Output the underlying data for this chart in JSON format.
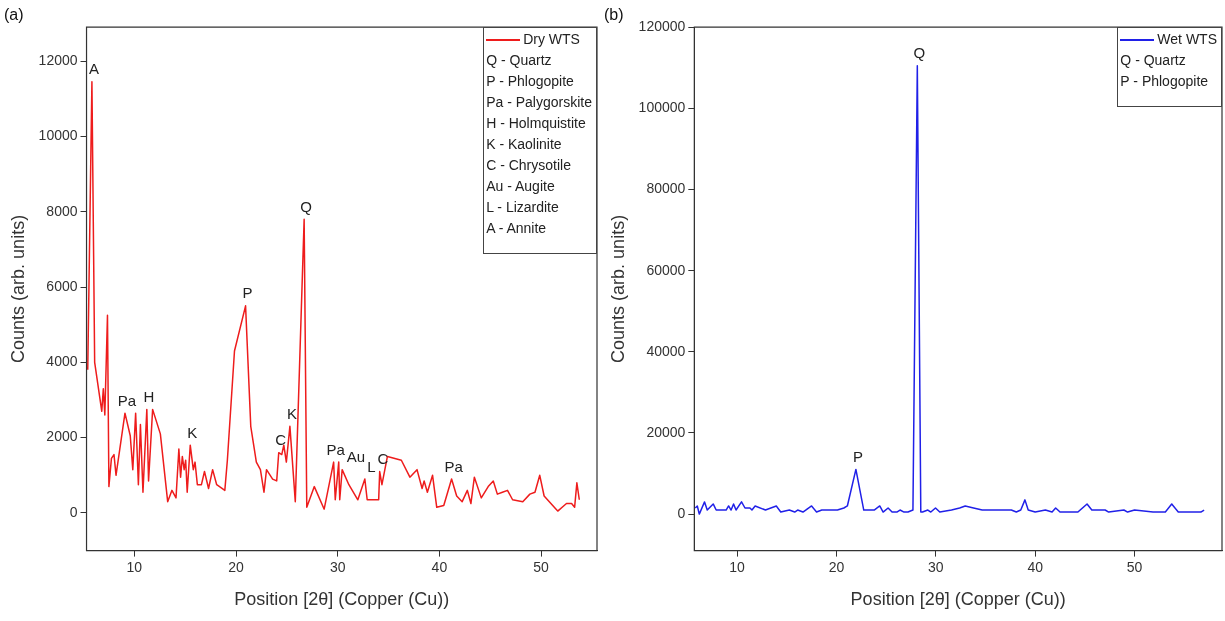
{
  "chart_data": [
    {
      "type": "line",
      "title": "(a)",
      "xlabel": "Position [2θ] (Copper (Cu))",
      "ylabel": "Counts (arb. units)",
      "legend": "top right",
      "grid": false,
      "marker": "none",
      "line_style": "solid",
      "xlim": [
        5.3,
        55.5
      ],
      "ylim": [
        -1000,
        12900
      ],
      "xticks": [
        10,
        20,
        30,
        40,
        50
      ],
      "yticks": [
        0,
        2000,
        4000,
        6000,
        8000,
        10000,
        12000
      ],
      "series": [
        {
          "name": "Dry WTS",
          "color": "#ee1c1c",
          "x": [
            5.42,
            5.83,
            6.1,
            6.8,
            6.95,
            7.1,
            7.36,
            7.5,
            7.75,
            8.0,
            8.2,
            9.08,
            9.6,
            9.85,
            10.13,
            10.4,
            10.6,
            10.85,
            11.23,
            11.4,
            11.8,
            12.56,
            13.28,
            13.7,
            14.1,
            14.38,
            14.55,
            14.72,
            14.9,
            15.05,
            15.2,
            15.5,
            15.8,
            15.97,
            16.2,
            16.6,
            16.9,
            17.3,
            17.7,
            18.1,
            18.9,
            19.15,
            19.85,
            20.94,
            21.45,
            22.0,
            22.4,
            22.75,
            23.0,
            23.6,
            24.0,
            24.2,
            24.5,
            24.7,
            24.95,
            25.3,
            25.83,
            26.7,
            26.96,
            27.7,
            28.67,
            29.6,
            29.76,
            30.1,
            30.2,
            30.44,
            31.1,
            31.98,
            32.67,
            32.9,
            34.03,
            34.13,
            34.35,
            34.89,
            36.26,
            37.1,
            37.8,
            38.3,
            38.5,
            38.82,
            39.33,
            39.74,
            40.43,
            41.2,
            41.7,
            42.24,
            42.75,
            43.1,
            43.44,
            44.12,
            44.8,
            45.3,
            45.7,
            46.2,
            46.7,
            47.2,
            48.2,
            48.9,
            49.4,
            49.87,
            50.3,
            51.64,
            52.5,
            53.0,
            53.3,
            53.52,
            53.76
          ],
          "values": [
            3800,
            11450,
            4000,
            2700,
            3300,
            2600,
            5250,
            700,
            1450,
            1550,
            1000,
            2650,
            2050,
            1150,
            2650,
            750,
            2350,
            550,
            2750,
            850,
            2750,
            2100,
            300,
            600,
            400,
            1700,
            950,
            1500,
            1150,
            1400,
            550,
            1800,
            1150,
            1350,
            750,
            750,
            1100,
            650,
            1150,
            750,
            600,
            1400,
            4300,
            5500,
            2300,
            1350,
            1150,
            550,
            1150,
            900,
            850,
            1600,
            1550,
            1800,
            1350,
            2300,
            300,
            7800,
            150,
            700,
            100,
            1350,
            350,
            1350,
            350,
            1150,
            750,
            350,
            900,
            350,
            350,
            1100,
            750,
            1500,
            1400,
            950,
            1150,
            650,
            850,
            550,
            1000,
            150,
            200,
            900,
            450,
            300,
            600,
            250,
            950,
            400,
            700,
            850,
            500,
            550,
            600,
            350,
            300,
            500,
            550,
            1000,
            450,
            50,
            250,
            250,
            150,
            800,
            350
          ]
        }
      ],
      "annotations": [
        "Q - Quartz",
        "P - Phlogopite",
        "Pa - Palygorskite",
        "H - Holmquistite",
        "K - Kaolinite",
        "C - Chrysotile",
        "Au - Augite",
        "L - Lizardite",
        "A - Annite",
        {
          "text": "A",
          "x": 5.83,
          "y": 11450
        },
        {
          "text": "Pa",
          "x": 9.08,
          "y": 2650
        },
        {
          "text": "H",
          "x": 11.23,
          "y": 2750
        },
        {
          "text": "K",
          "x": 15.5,
          "y": 1800
        },
        {
          "text": "P",
          "x": 20.94,
          "y": 5500
        },
        {
          "text": "C",
          "x": 24.2,
          "y": 1600
        },
        {
          "text": "K",
          "x": 25.3,
          "y": 2300
        },
        {
          "text": "Q",
          "x": 26.7,
          "y": 7800
        },
        {
          "text": "Pa",
          "x": 29.6,
          "y": 1350
        },
        {
          "text": "Au",
          "x": 30.44,
          "y": 1150
        },
        {
          "text": "L",
          "x": 32.67,
          "y": 900
        },
        {
          "text": "C",
          "x": 34.13,
          "y": 1100
        },
        {
          "text": "Pa",
          "x": 41.2,
          "y": 900
        }
      ]
    },
    {
      "type": "line",
      "title": "(b)",
      "xlabel": "Position [2θ] (Copper (Cu))",
      "ylabel": "Counts (arb. units)",
      "legend": "top right",
      "grid": false,
      "marker": "none",
      "line_style": "solid",
      "xlim": [
        5.7,
        58.8
      ],
      "ylim": [
        -9000,
        120000
      ],
      "xticks": [
        10,
        20,
        30,
        40,
        50
      ],
      "yticks": [
        0,
        20000,
        40000,
        60000,
        80000,
        100000,
        120000
      ],
      "series": [
        {
          "name": "Wet WTS",
          "color": "#2020e8",
          "x": [
            5.8,
            6.0,
            6.2,
            6.73,
            7.0,
            7.6,
            7.9,
            8.9,
            9.15,
            9.4,
            9.65,
            9.9,
            10.45,
            10.8,
            11.3,
            11.5,
            11.82,
            12.86,
            13.95,
            14.4,
            15.26,
            15.8,
            16.1,
            16.63,
            17.5,
            18.0,
            18.53,
            20.1,
            20.75,
            21.1,
            21.96,
            22.75,
            23.8,
            24.36,
            24.7,
            25.2,
            25.6,
            26.08,
            26.4,
            26.8,
            27.2,
            27.7,
            28.14,
            28.49,
            28.66,
            29.2,
            29.5,
            29.97,
            30.4,
            31.58,
            32.4,
            32.96,
            33.8,
            34.67,
            35.5,
            37.6,
            38.1,
            38.55,
            38.97,
            39.3,
            40.0,
            41.03,
            41.7,
            42.06,
            42.5,
            44.3,
            45.22,
            45.7,
            47.04,
            47.4,
            48.93,
            49.3,
            50.0,
            51.86,
            53.1,
            53.74,
            54.4,
            56.67,
            57.0
          ],
          "values": [
            1500,
            2000,
            0,
            3000,
            1000,
            2500,
            1000,
            1000,
            2000,
            1000,
            2500,
            1000,
            3000,
            1500,
            1500,
            1000,
            2000,
            1000,
            2000,
            500,
            1000,
            500,
            1000,
            500,
            2000,
            500,
            1000,
            1000,
            1500,
            2000,
            11000,
            1000,
            1000,
            2000,
            500,
            1500,
            500,
            500,
            1000,
            500,
            500,
            1000,
            110500,
            500,
            500,
            1000,
            500,
            1500,
            500,
            1000,
            1500,
            2000,
            1500,
            1000,
            1000,
            1000,
            500,
            1000,
            3500,
            1000,
            500,
            1000,
            500,
            1500,
            500,
            500,
            2500,
            1000,
            1000,
            500,
            1000,
            500,
            1000,
            500,
            500,
            2500,
            500,
            500,
            1000
          ]
        }
      ],
      "annotations": [
        "Q - Quartz",
        "P - Phlogopite",
        {
          "text": "P",
          "x": 21.96,
          "y": 11000
        },
        {
          "text": "Q",
          "x": 28.14,
          "y": 110500
        }
      ]
    }
  ]
}
